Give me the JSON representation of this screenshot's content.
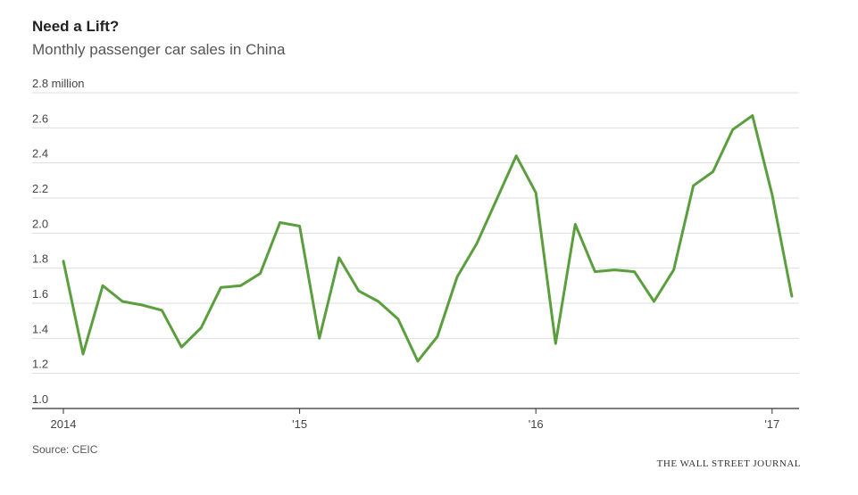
{
  "header": {
    "title": "Need a Lift?",
    "subtitle": "Monthly passenger car sales in China"
  },
  "footer": {
    "source": "Source: CEIC",
    "credit": "THE WALL STREET JOURNAL"
  },
  "colors": {
    "line": "#5a9e3e",
    "grid": "#dddddd",
    "axis": "#333333"
  },
  "chart_data": {
    "type": "line",
    "title": "Need a Lift?",
    "subtitle": "Monthly passenger car sales in China",
    "xlabel": "",
    "ylabel": "",
    "ylim": [
      1.0,
      2.8
    ],
    "grid": true,
    "y_ticks": [
      1.0,
      1.2,
      1.4,
      1.6,
      1.8,
      2.0,
      2.2,
      2.4,
      2.6,
      2.8
    ],
    "y_tick_labels": [
      "1.0",
      "1.2",
      "1.4",
      "1.6",
      "1.8",
      "2.0",
      "2.2",
      "2.4",
      "2.6",
      "2.8 million"
    ],
    "x_tick_labels": [
      "2014",
      "'15",
      "'16",
      "'17"
    ],
    "x": [
      "2014-01",
      "2014-02",
      "2014-03",
      "2014-04",
      "2014-05",
      "2014-06",
      "2014-07",
      "2014-08",
      "2014-09",
      "2014-10",
      "2014-11",
      "2014-12",
      "2015-01",
      "2015-02",
      "2015-03",
      "2015-04",
      "2015-05",
      "2015-06",
      "2015-07",
      "2015-08",
      "2015-09",
      "2015-10",
      "2015-11",
      "2015-12",
      "2016-01",
      "2016-02",
      "2016-03",
      "2016-04",
      "2016-05",
      "2016-06",
      "2016-07",
      "2016-08",
      "2016-09",
      "2016-10",
      "2016-11",
      "2016-12",
      "2017-01",
      "2017-02",
      "2017-03"
    ],
    "series": [
      {
        "values": [
          1.84,
          1.31,
          1.7,
          1.61,
          1.59,
          1.56,
          1.35,
          1.46,
          1.69,
          1.7,
          1.77,
          2.06,
          2.04,
          1.4,
          1.86,
          1.67,
          1.61,
          1.51,
          1.27,
          1.41,
          1.75,
          1.94,
          2.19,
          2.44,
          2.23,
          1.37,
          2.05,
          1.78,
          1.79,
          1.78,
          1.61,
          1.79,
          2.27,
          2.35,
          2.59,
          2.67,
          2.22,
          1.64,
          null
        ]
      }
    ]
  }
}
